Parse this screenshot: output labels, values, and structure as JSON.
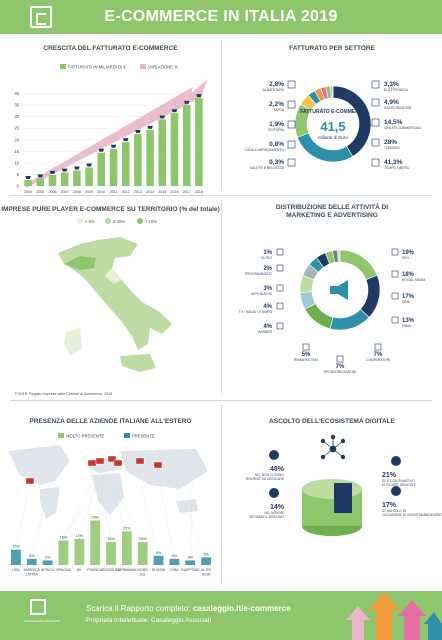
{
  "header": {
    "title": "E-COMMERCE IN ITALIA 2019"
  },
  "panels": {
    "growth": {
      "title": "CRESCITA DEL FATTURATO E-COMMERCE",
      "legend": [
        "FATTURATO IN MILIARDI DI €",
        "VARIAZIONE %"
      ]
    },
    "sector": {
      "title": "FATTURATO PER SETTORE",
      "center_label": "FATTURATO E-COMMERCE",
      "center_value": "41,5",
      "center_unit": "miliardi di Euro"
    },
    "regions": {
      "title": "IMPRESE PURE PLAYER E-COMMERCE SU TERRITORIO (% del totale)",
      "legend": [
        "< 5%",
        "5-10%",
        "> 10%"
      ],
      "source": "FONTE: Registro Imprese delle Camere di Commercio, 2019"
    },
    "marketing": {
      "title": "DISTRIBUZIONE DELLE ATTIVITÀ DI MARKETING E ADVERTISING"
    },
    "abroad": {
      "title": "PRESENZA DELLE AZIENDE ITALIANE ALL'ESTERO",
      "legend": [
        "MOLTO PRESENTE",
        "PRESENTE"
      ]
    },
    "ecosystem": {
      "title": "ASCOLTO DELL'ECOSISTEMA DIGITALE"
    }
  },
  "footer": {
    "line1_prefix": "Scarica il Rapporto completo: ",
    "line1_link": "casaleggio.it/e-commerce",
    "line2": "Proprietà Intellettuale: Casaleggio Associati",
    "logo_text": "CASALEGGIO ASSOCIATI"
  },
  "colors": {
    "green": "#8ec66b",
    "navy": "#1f3b63",
    "teal": "#2e8fa8",
    "grey": "#a7b4bd",
    "pink": "#e8b6c8",
    "orange": "#f29a3b"
  },
  "chart_data": [
    {
      "type": "bar",
      "title": "CRESCITA DEL FATTURATO E-COMMERCE",
      "categories": [
        "2004",
        "2005",
        "2006",
        "2007",
        "2008",
        "2009",
        "2010",
        "2011",
        "2012",
        "2013",
        "2014",
        "2015",
        "2016",
        "2017",
        "2018"
      ],
      "ylim": [
        0,
        45
      ],
      "yticks": [
        0,
        5,
        10,
        15,
        20,
        25,
        30,
        35,
        40
      ],
      "series": [
        {
          "name": "FATTURATO IN MILIARDI DI €",
          "values": [
            2.6,
            3.3,
            4.8,
            5.8,
            6.7,
            8.0,
            14.4,
            16.1,
            19.0,
            22.5,
            24.3,
            28.8,
            31.5,
            35.1,
            38.0
          ]
        }
      ]
    },
    {
      "type": "pie",
      "title": "FATTURATO PER SETTORE",
      "categories": [
        "ALIMENTARE",
        "MODA",
        "EDITORIA",
        "CASA E ARREDAMENTO",
        "SALUTE E BELLEZZA",
        "ELETTRONICA",
        "ASSICURAZIONE",
        "CENTRI COMMERCIALI",
        "TURISMO",
        "TEMPO LIBERO"
      ],
      "values": [
        2.8,
        2.2,
        1.9,
        0.8,
        0.3,
        3.3,
        4.9,
        14.5,
        28,
        41.3
      ],
      "labels": [
        "2,8%",
        "2,2%",
        "1,9%",
        "0,8%",
        "0,3%",
        "3,3%",
        "4,9%",
        "14,5%",
        "28%",
        "41,3%"
      ]
    },
    {
      "type": "pie",
      "title": "DISTRIBUZIONE DELLE ATTIVITÀ DI MARKETING E ADVERTISING",
      "categories": [
        "ALTRO",
        "PROGRAMMATIC",
        "AFFILIAZIONI",
        "TV / RADIO / STAMPA",
        "BANNER",
        "REMARKETING",
        "SPONSORIZZAZIONI",
        "COMPARATORI",
        "EMAIL",
        "DEM",
        "SOCIAL MEDIA",
        "SEO"
      ],
      "values": [
        1,
        2,
        3,
        4,
        4,
        5,
        7,
        7,
        13,
        17,
        18,
        19
      ],
      "labels": [
        "1%",
        "2%",
        "3%",
        "4%",
        "4%",
        "5%",
        "7%",
        "7%",
        "13%",
        "17%",
        "18%",
        "19%"
      ]
    },
    {
      "type": "bar",
      "title": "PRESENZA DELLE AZIENDE ITALIANE ALL'ESTERO",
      "categories": [
        "USA",
        "AMERICA LATINA",
        "AFRICA",
        "SPAGNA",
        "UK",
        "FRANCIA",
        "SVIZZERA",
        "GERMANIA",
        "NORD EU",
        "RUSSIA",
        "CINA",
        "GIAPPONE",
        "ALTRI ASIA"
      ],
      "values": [
        10,
        4,
        3,
        16,
        17,
        29,
        15,
        22,
        15,
        6,
        4,
        3,
        5
      ],
      "labels": [
        "10%",
        "4%",
        "3%",
        "16%",
        "17%",
        "29%",
        "15%",
        "22%",
        "15%",
        "6%",
        "4%",
        "3%",
        "5%"
      ]
    },
    {
      "type": "table",
      "title": "ASCOLTO DELL'ECOSISTEMA DIGITALE",
      "rows": [
        [
          "48%",
          "NO, NON CI SONO RISORSE DA DEDICARE"
        ],
        [
          "14%",
          "NO, NON NE VEDIAMO IL BISOGNO"
        ],
        [
          "21%",
          "SÌ, È CONTINUATIVO DI FIGURE DEDICATE"
        ],
        [
          "17%",
          "SÌ, MA SOLO IN OCCASIONE DI CRISIS MANAGEMENT"
        ]
      ]
    }
  ]
}
